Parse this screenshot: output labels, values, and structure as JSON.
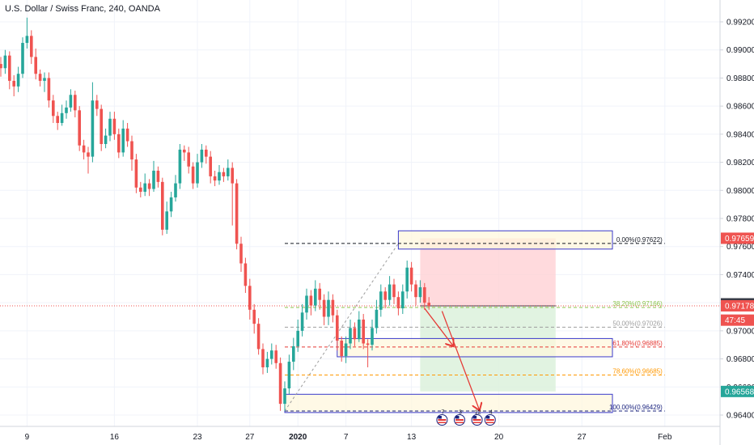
{
  "header": {
    "title": "U.S. Dollar / Swiss Franc, 240, OANDA"
  },
  "colors": {
    "up": "#26a69a",
    "down": "#ef5350",
    "grid": "#f0f3fa",
    "box_stroke": "#3a3acb",
    "box_fill": "#fff6dc",
    "stop_fill": "#ffcdd2",
    "target_fill": "#dcf1dc",
    "fib0": "#131722",
    "fib382": "#8bc34a",
    "fib50": "#9e9e9e",
    "fib618": "#e53935",
    "fib786": "#ff9800",
    "fib100": "#1a237e",
    "current_line": "#ef5350",
    "arrow": "#e53935"
  },
  "chart_data": {
    "type": "candlestick",
    "y_axis_ticks": [
      "0.99200",
      "0.99000",
      "0.98800",
      "0.98600",
      "0.98400",
      "0.98200",
      "0.98000",
      "0.97800",
      "0.97600",
      "0.97400",
      "0.97200",
      "0.97000",
      "0.96800",
      "0.96600",
      "0.96400"
    ],
    "ylim": [
      0.9636,
      0.9936
    ],
    "x_axis_ticks": [
      {
        "label": "9",
        "bar": 6,
        "bold": false
      },
      {
        "label": "16",
        "bar": 26,
        "bold": false
      },
      {
        "label": "23",
        "bar": 45,
        "bold": false
      },
      {
        "label": "27",
        "bar": 57,
        "bold": false
      },
      {
        "label": "2020",
        "bar": 68,
        "bold": true
      },
      {
        "label": "7",
        "bar": 79,
        "bold": false
      },
      {
        "label": "13",
        "bar": 94,
        "bold": false
      },
      {
        "label": "20",
        "bar": 114,
        "bold": false
      },
      {
        "label": "27",
        "bar": 133,
        "bold": false
      },
      {
        "label": "Feb",
        "bar": 152,
        "bold": false
      }
    ],
    "price_tags": [
      {
        "value": "0.97659",
        "y": 0.97659,
        "color": "#ef5350"
      },
      {
        "value": "0.97192",
        "y": 0.97192,
        "color": "#363a45"
      },
      {
        "value": "0.97178",
        "y": 0.97178,
        "color": "#ef5350"
      },
      {
        "value": "47:45",
        "y": 0.97076,
        "color": "#ef5350"
      },
      {
        "value": "0.96568",
        "y": 0.96568,
        "color": "#26a69a"
      }
    ],
    "fibonacci": [
      {
        "level": "0.00%",
        "price": "0.97622",
        "y": 0.97622
      },
      {
        "level": "38.20%",
        "price": "0.97166",
        "y": 0.97166
      },
      {
        "level": "50.00%",
        "price": "0.97026",
        "y": 0.97026
      },
      {
        "level": "61.80%",
        "price": "0.96885",
        "y": 0.96885
      },
      {
        "level": "78.60%",
        "price": "0.96685",
        "y": 0.96685
      },
      {
        "level": "100.00%",
        "price": "0.96429",
        "y": 0.96429
      }
    ],
    "zones": [
      {
        "top": 0.97712,
        "bottom": 0.97582,
        "start_bar": 91,
        "end_bar": 140
      },
      {
        "top": 0.96945,
        "bottom": 0.96815,
        "start_bar": 77,
        "end_bar": 140
      },
      {
        "top": 0.96548,
        "bottom": 0.96418,
        "start_bar": 65,
        "end_bar": 140
      }
    ],
    "position": {
      "entry": 0.97178,
      "stop": 0.97659,
      "target": 0.96568,
      "start_bar": 96,
      "end_bar": 127
    },
    "event_flags": [
      "7",
      "3",
      "12",
      "4"
    ],
    "candles": [
      [
        0.989,
        0.9887,
        0.9895,
        0.9881
      ],
      [
        0.9887,
        0.9896,
        0.99,
        0.9883
      ],
      [
        0.9896,
        0.9878,
        0.9899,
        0.9872
      ],
      [
        0.9878,
        0.9874,
        0.9882,
        0.9867
      ],
      [
        0.9874,
        0.9883,
        0.9888,
        0.987
      ],
      [
        0.9883,
        0.9905,
        0.9909,
        0.988
      ],
      [
        0.9905,
        0.991,
        0.9923,
        0.9901
      ],
      [
        0.991,
        0.9895,
        0.9914,
        0.989
      ],
      [
        0.9895,
        0.9883,
        0.9901,
        0.9879
      ],
      [
        0.9883,
        0.9878,
        0.9886,
        0.9874
      ],
      [
        0.9878,
        0.988,
        0.9884,
        0.987
      ],
      [
        0.988,
        0.9864,
        0.9884,
        0.9859
      ],
      [
        0.9864,
        0.9853,
        0.9868,
        0.9848
      ],
      [
        0.9853,
        0.9848,
        0.9856,
        0.9843
      ],
      [
        0.9848,
        0.9855,
        0.9861,
        0.9846
      ],
      [
        0.9855,
        0.9859,
        0.9864,
        0.9851
      ],
      [
        0.9859,
        0.9868,
        0.9872,
        0.9856
      ],
      [
        0.9868,
        0.9857,
        0.9871,
        0.9852
      ],
      [
        0.9857,
        0.9832,
        0.986,
        0.9828
      ],
      [
        0.9832,
        0.9827,
        0.9836,
        0.9822
      ],
      [
        0.9827,
        0.9824,
        0.9831,
        0.9812
      ],
      [
        0.9824,
        0.9864,
        0.9877,
        0.982
      ],
      [
        0.9864,
        0.9858,
        0.9868,
        0.9853
      ],
      [
        0.9858,
        0.9833,
        0.9861,
        0.9828
      ],
      [
        0.9833,
        0.9839,
        0.9844,
        0.983
      ],
      [
        0.9839,
        0.9851,
        0.9856,
        0.9835
      ],
      [
        0.9851,
        0.984,
        0.9856,
        0.9836
      ],
      [
        0.984,
        0.9827,
        0.9844,
        0.9823
      ],
      [
        0.9827,
        0.9844,
        0.985,
        0.9824
      ],
      [
        0.9844,
        0.9835,
        0.9848,
        0.9831
      ],
      [
        0.9835,
        0.9822,
        0.9839,
        0.9814
      ],
      [
        0.9822,
        0.9802,
        0.9826,
        0.9798
      ],
      [
        0.9802,
        0.9799,
        0.9806,
        0.9795
      ],
      [
        0.9799,
        0.9805,
        0.9812,
        0.9796
      ],
      [
        0.9805,
        0.9801,
        0.9808,
        0.9796
      ],
      [
        0.9801,
        0.9814,
        0.9821,
        0.9799
      ],
      [
        0.9814,
        0.9806,
        0.9817,
        0.9802
      ],
      [
        0.9806,
        0.9772,
        0.9809,
        0.9768
      ],
      [
        0.9772,
        0.9785,
        0.9792,
        0.9769
      ],
      [
        0.9785,
        0.9795,
        0.9799,
        0.9781
      ],
      [
        0.9795,
        0.9805,
        0.9811,
        0.9792
      ],
      [
        0.9805,
        0.9829,
        0.9833,
        0.9801
      ],
      [
        0.9829,
        0.9827,
        0.9832,
        0.9821
      ],
      [
        0.9827,
        0.9817,
        0.9831,
        0.9812
      ],
      [
        0.9817,
        0.9805,
        0.982,
        0.9801
      ],
      [
        0.9805,
        0.982,
        0.9826,
        0.9802
      ],
      [
        0.982,
        0.9829,
        0.9833,
        0.9816
      ],
      [
        0.9829,
        0.9824,
        0.9832,
        0.9819
      ],
      [
        0.9824,
        0.981,
        0.9828,
        0.9805
      ],
      [
        0.981,
        0.9807,
        0.9814,
        0.9803
      ],
      [
        0.9807,
        0.9813,
        0.9818,
        0.9804
      ],
      [
        0.9813,
        0.981,
        0.9816,
        0.9806
      ],
      [
        0.981,
        0.9816,
        0.9822,
        0.9807
      ],
      [
        0.9816,
        0.9805,
        0.982,
        0.9775
      ],
      [
        0.9805,
        0.9762,
        0.9808,
        0.9758
      ],
      [
        0.9762,
        0.9748,
        0.9767,
        0.9742
      ],
      [
        0.9748,
        0.9732,
        0.9752,
        0.9727
      ],
      [
        0.9732,
        0.9715,
        0.9737,
        0.9708
      ],
      [
        0.9715,
        0.9705,
        0.9719,
        0.9698
      ],
      [
        0.9705,
        0.9687,
        0.9709,
        0.9683
      ],
      [
        0.9687,
        0.9674,
        0.9691,
        0.9669
      ],
      [
        0.9674,
        0.968,
        0.9685,
        0.967
      ],
      [
        0.968,
        0.9686,
        0.9691,
        0.9676
      ],
      [
        0.9686,
        0.9677,
        0.969,
        0.9673
      ],
      [
        0.9677,
        0.9648,
        0.9681,
        0.9643
      ],
      [
        0.9648,
        0.9659,
        0.9664,
        0.9643
      ],
      [
        0.9659,
        0.9678,
        0.9683,
        0.9655
      ],
      [
        0.9678,
        0.9689,
        0.9695,
        0.9672
      ],
      [
        0.9689,
        0.97,
        0.9708,
        0.9685
      ],
      [
        0.97,
        0.9713,
        0.9719,
        0.9696
      ],
      [
        0.9713,
        0.9725,
        0.973,
        0.9708
      ],
      [
        0.9725,
        0.9718,
        0.9729,
        0.9711
      ],
      [
        0.9718,
        0.973,
        0.9736,
        0.9714
      ],
      [
        0.973,
        0.9722,
        0.9734,
        0.9715
      ],
      [
        0.9722,
        0.971,
        0.9726,
        0.9704
      ],
      [
        0.971,
        0.9722,
        0.9728,
        0.9704
      ],
      [
        0.9722,
        0.9711,
        0.9726,
        0.9706
      ],
      [
        0.9711,
        0.9693,
        0.9715,
        0.9686
      ],
      [
        0.9693,
        0.9682,
        0.9696,
        0.9678
      ],
      [
        0.9682,
        0.9691,
        0.9696,
        0.9677
      ],
      [
        0.9691,
        0.9702,
        0.9708,
        0.9687
      ],
      [
        0.9702,
        0.9694,
        0.9706,
        0.9689
      ],
      [
        0.9694,
        0.9708,
        0.9714,
        0.9692
      ],
      [
        0.9708,
        0.9691,
        0.9712,
        0.9687
      ],
      [
        0.9691,
        0.969,
        0.9694,
        0.9674
      ],
      [
        0.969,
        0.9702,
        0.9708,
        0.9686
      ],
      [
        0.9702,
        0.9715,
        0.9722,
        0.9698
      ],
      [
        0.9715,
        0.9728,
        0.9733,
        0.971
      ],
      [
        0.9728,
        0.9722,
        0.9731,
        0.9716
      ],
      [
        0.9722,
        0.9733,
        0.9739,
        0.9718
      ],
      [
        0.9733,
        0.9724,
        0.9737,
        0.9719
      ],
      [
        0.9724,
        0.9716,
        0.9728,
        0.9711
      ],
      [
        0.9716,
        0.9728,
        0.9733,
        0.9712
      ],
      [
        0.9728,
        0.9745,
        0.975,
        0.9723
      ],
      [
        0.9745,
        0.9733,
        0.9749,
        0.9728
      ],
      [
        0.9733,
        0.9724,
        0.9736,
        0.9718
      ],
      [
        0.9724,
        0.9731,
        0.9736,
        0.972
      ],
      [
        0.9731,
        0.972,
        0.9734,
        0.9715
      ],
      [
        0.972,
        0.97178,
        0.9724,
        0.9715
      ]
    ]
  }
}
